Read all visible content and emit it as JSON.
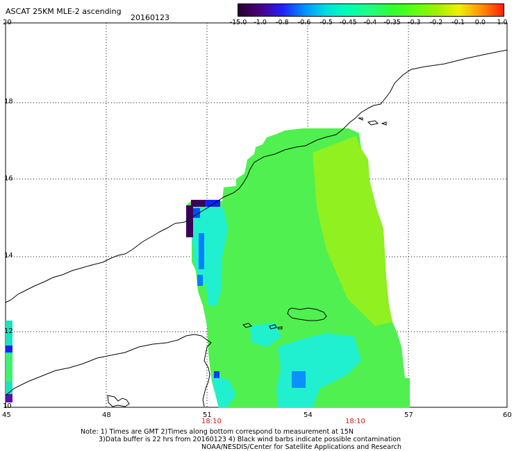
{
  "header": {
    "title": "ASCAT 25KM MLE-2 ascending",
    "date": "20160123"
  },
  "colorbar": {
    "tick_labels": [
      "-15.0",
      "-1.0",
      "-0.8",
      "-0.6",
      "-0.5",
      "-0.45",
      "-0.4",
      "-0.35",
      "-0.3",
      "-0.2",
      "-0.1",
      "0.0",
      "1.0"
    ],
    "colors": [
      "#2a0030",
      "#4b0082",
      "#2020ff",
      "#0090ff",
      "#00e0e0",
      "#00ffb0",
      "#20ff80",
      "#30ff30",
      "#60ff10",
      "#a0f000",
      "#f0f000",
      "#ff9000",
      "#ff2000"
    ]
  },
  "axes": {
    "lat_labels": [
      "20",
      "18",
      "16",
      "14",
      "12",
      "10"
    ],
    "lon_labels": [
      "45",
      "48",
      "51",
      "54",
      "57",
      "60"
    ],
    "times": [
      "18:10",
      "18:10"
    ]
  },
  "notes": {
    "line1": "Note: 1) Times are GMT 2)Times along bottom correspond to measurement at 15N",
    "line2": "3)Data buffer is 22 hrs from 20160123 4) Black wind barbs indicate possible contamination",
    "line3": "NOAA/NESDIS/Center for Satellite Applications and Research"
  },
  "style": {
    "swath_main": "#50f050",
    "swath_east": "#90f020",
    "swath_cyan": "#20f0d0",
    "coast": "#000000"
  }
}
